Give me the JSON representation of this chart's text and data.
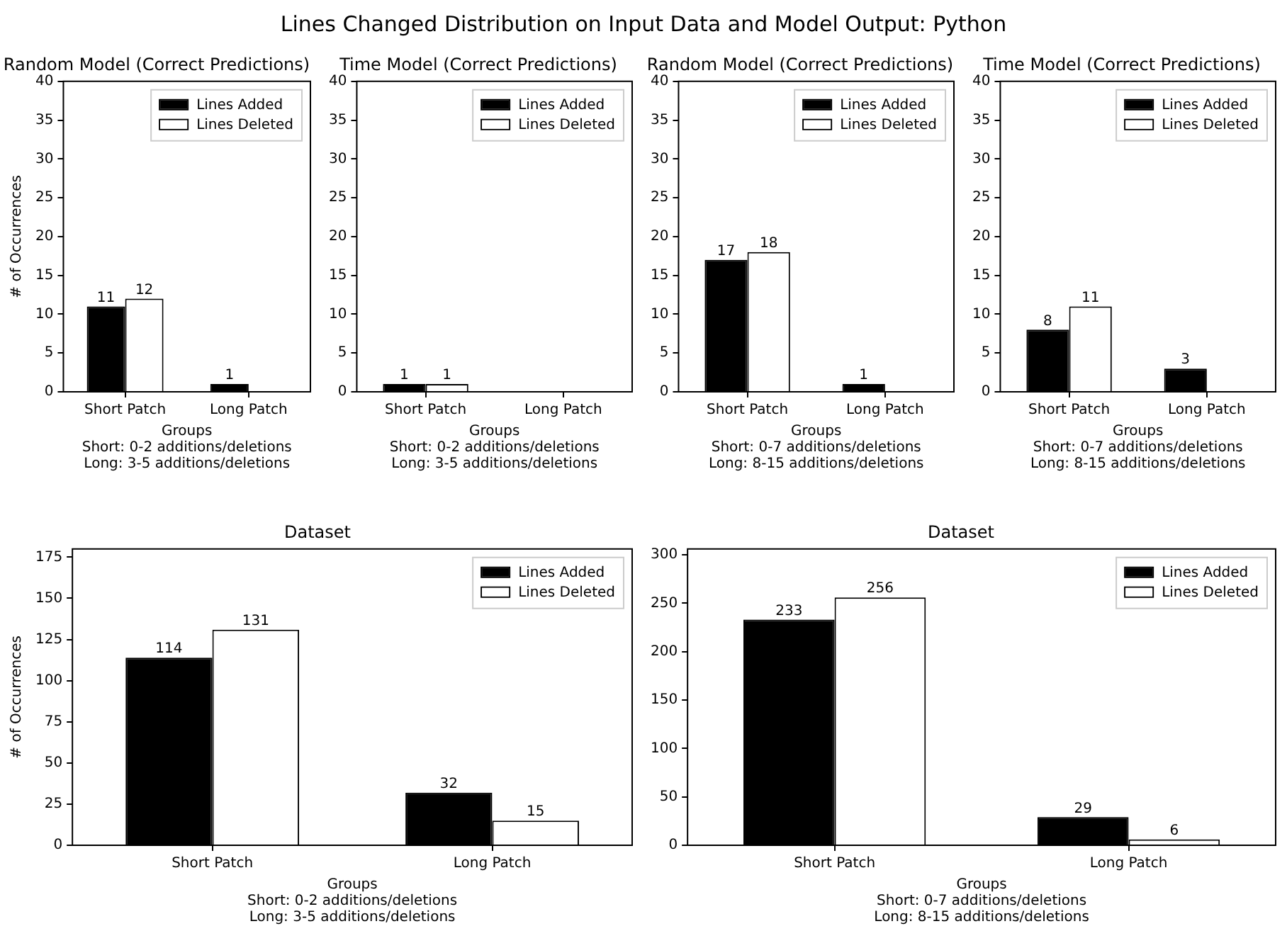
{
  "chart_data": [
    {
      "type": "other",
      "title": "Lines Changed Distribution on Input Data and Model Output: Python"
    },
    {
      "type": "bar",
      "title": "Random Model (Correct Predictions)",
      "xlabel": "Groups\nShort: 0-2 additions/deletions\nLong: 3-5 additions/deletions",
      "ylabel": "# of Occurrences",
      "categories": [
        "Short Patch",
        "Long Patch"
      ],
      "ylim": [
        0,
        40
      ],
      "yticks": [
        0,
        5,
        10,
        15,
        20,
        25,
        30,
        35,
        40
      ],
      "grid": false,
      "legend": "top right",
      "series": [
        {
          "name": "Lines Added",
          "color": "#000000",
          "values": [
            11,
            1
          ],
          "value_labels": [
            "11",
            "1"
          ]
        },
        {
          "name": "Lines Deleted",
          "color": "#ffffff",
          "values": [
            12,
            0
          ],
          "value_labels": [
            "12",
            null
          ]
        }
      ]
    },
    {
      "type": "bar",
      "title": "Time Model (Correct Predictions)",
      "xlabel": "Groups\nShort: 0-2 additions/deletions\nLong: 3-5 additions/deletions",
      "categories": [
        "Short Patch",
        "Long Patch"
      ],
      "ylim": [
        0,
        40
      ],
      "yticks": [
        0,
        5,
        10,
        15,
        20,
        25,
        30,
        35,
        40
      ],
      "grid": false,
      "legend": "top right",
      "series": [
        {
          "name": "Lines Added",
          "color": "#000000",
          "values": [
            1,
            0
          ],
          "value_labels": [
            "1",
            null
          ]
        },
        {
          "name": "Lines Deleted",
          "color": "#ffffff",
          "values": [
            1,
            0
          ],
          "value_labels": [
            "1",
            null
          ]
        }
      ]
    },
    {
      "type": "bar",
      "title": "Random Model (Correct Predictions)",
      "xlabel": "Groups\nShort: 0-7 additions/deletions\nLong: 8-15 additions/deletions",
      "categories": [
        "Short Patch",
        "Long Patch"
      ],
      "ylim": [
        0,
        40
      ],
      "yticks": [
        0,
        5,
        10,
        15,
        20,
        25,
        30,
        35,
        40
      ],
      "grid": false,
      "legend": "top right",
      "series": [
        {
          "name": "Lines Added",
          "color": "#000000",
          "values": [
            17,
            1
          ],
          "value_labels": [
            "17",
            "1"
          ]
        },
        {
          "name": "Lines Deleted",
          "color": "#ffffff",
          "values": [
            18,
            0
          ],
          "value_labels": [
            "18",
            null
          ]
        }
      ]
    },
    {
      "type": "bar",
      "title": "Time Model (Correct Predictions)",
      "xlabel": "Groups\nShort: 0-7 additions/deletions\nLong: 8-15 additions/deletions",
      "categories": [
        "Short Patch",
        "Long Patch"
      ],
      "ylim": [
        0,
        40
      ],
      "yticks": [
        0,
        5,
        10,
        15,
        20,
        25,
        30,
        35,
        40
      ],
      "grid": false,
      "legend": "top right",
      "series": [
        {
          "name": "Lines Added",
          "color": "#000000",
          "values": [
            8,
            3
          ],
          "value_labels": [
            "8",
            "3"
          ]
        },
        {
          "name": "Lines Deleted",
          "color": "#ffffff",
          "values": [
            11,
            0
          ],
          "value_labels": [
            "11",
            null
          ]
        }
      ]
    },
    {
      "type": "bar",
      "title": "Dataset",
      "xlabel": "Groups\nShort: 0-2 additions/deletions\nLong: 3-5 additions/deletions",
      "ylabel": "# of Occurrences",
      "categories": [
        "Short Patch",
        "Long Patch"
      ],
      "ylim": [
        0,
        180
      ],
      "yticks": [
        0,
        25,
        50,
        75,
        100,
        125,
        150,
        175
      ],
      "grid": false,
      "legend": "top right",
      "series": [
        {
          "name": "Lines Added",
          "color": "#000000",
          "values": [
            114,
            32
          ],
          "value_labels": [
            "114",
            "32"
          ]
        },
        {
          "name": "Lines Deleted",
          "color": "#ffffff",
          "values": [
            131,
            15
          ],
          "value_labels": [
            "131",
            "15"
          ]
        }
      ]
    },
    {
      "type": "bar",
      "title": "Dataset",
      "xlabel": "Groups\nShort: 0-7 additions/deletions\nLong: 8-15 additions/deletions",
      "categories": [
        "Short Patch",
        "Long Patch"
      ],
      "ylim": [
        0,
        306
      ],
      "yticks": [
        0,
        50,
        100,
        150,
        200,
        250,
        300
      ],
      "grid": false,
      "legend": "top right",
      "series": [
        {
          "name": "Lines Added",
          "color": "#000000",
          "values": [
            233,
            29
          ],
          "value_labels": [
            "233",
            "29"
          ]
        },
        {
          "name": "Lines Deleted",
          "color": "#ffffff",
          "values": [
            256,
            6
          ],
          "value_labels": [
            "256",
            "6"
          ]
        }
      ]
    }
  ]
}
